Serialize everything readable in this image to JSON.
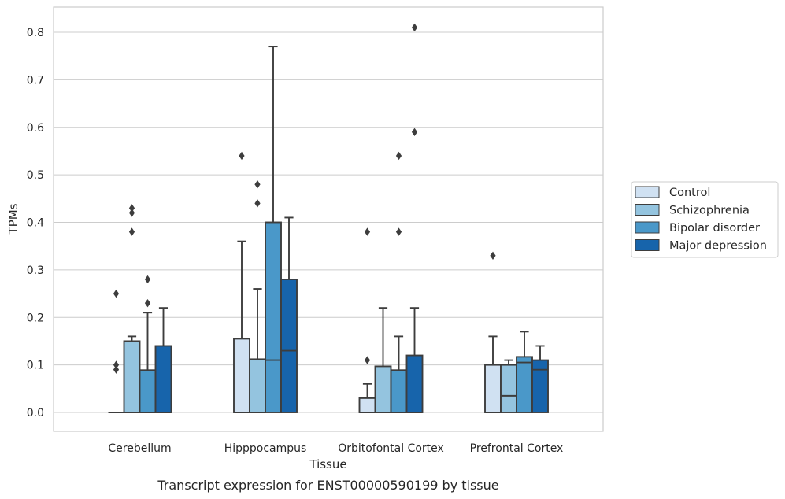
{
  "caption": "Transcript expression for ENST00000590199 by tissue",
  "chart_data": {
    "type": "boxplot",
    "title": "",
    "xlabel": "Tissue",
    "ylabel": "TPMs",
    "ylim": [
      -0.04,
      0.85
    ],
    "yticks": [
      "0.0",
      "0.1",
      "0.2",
      "0.3",
      "0.4",
      "0.5",
      "0.6",
      "0.7",
      "0.8"
    ],
    "grid": "horizontal",
    "legend_position": "right",
    "categories": [
      "Cerebellum",
      "Hipppocampus",
      "Orbitofontal Cortex",
      "Prefrontal Cortex"
    ],
    "series": [
      {
        "name": "Control",
        "color": "#d0e1f2",
        "boxes": [
          {
            "min": 0.0,
            "q1": 0.0,
            "median": 0.0,
            "q3": 0.0,
            "max": 0.0,
            "outliers": [
              0.09,
              0.1,
              0.25
            ]
          },
          {
            "min": 0.0,
            "q1": 0.0,
            "median": 0.0,
            "q3": 0.155,
            "max": 0.36,
            "outliers": [
              0.54
            ]
          },
          {
            "min": 0.0,
            "q1": 0.0,
            "median": 0.0,
            "q3": 0.03,
            "max": 0.06,
            "outliers": [
              0.11,
              0.38
            ]
          },
          {
            "min": 0.0,
            "q1": 0.0,
            "median": 0.0,
            "q3": 0.1,
            "max": 0.16,
            "outliers": [
              0.33
            ]
          }
        ]
      },
      {
        "name": "Schizophrenia",
        "color": "#94c4df",
        "boxes": [
          {
            "min": 0.0,
            "q1": 0.0,
            "median": 0.0,
            "q3": 0.15,
            "max": 0.16,
            "outliers": [
              0.38,
              0.42,
              0.43
            ]
          },
          {
            "min": 0.0,
            "q1": 0.0,
            "median": 0.0,
            "q3": 0.112,
            "max": 0.26,
            "outliers": [
              0.44,
              0.48
            ]
          },
          {
            "min": 0.0,
            "q1": 0.0,
            "median": 0.0,
            "q3": 0.097,
            "max": 0.22,
            "outliers": []
          },
          {
            "min": 0.0,
            "q1": 0.0,
            "median": 0.035,
            "q3": 0.1,
            "max": 0.11,
            "outliers": []
          }
        ]
      },
      {
        "name": "Bipolar disorder",
        "color": "#4a98c9",
        "boxes": [
          {
            "min": 0.0,
            "q1": 0.0,
            "median": 0.0,
            "q3": 0.089,
            "max": 0.21,
            "outliers": [
              0.23,
              0.28
            ]
          },
          {
            "min": 0.0,
            "q1": 0.0,
            "median": 0.11,
            "q3": 0.4,
            "max": 0.77,
            "outliers": []
          },
          {
            "min": 0.0,
            "q1": 0.0,
            "median": 0.0,
            "q3": 0.089,
            "max": 0.16,
            "outliers": [
              0.38,
              0.54
            ]
          },
          {
            "min": 0.0,
            "q1": 0.0,
            "median": 0.105,
            "q3": 0.117,
            "max": 0.17,
            "outliers": []
          }
        ]
      },
      {
        "name": "Major depression",
        "color": "#1764ab",
        "boxes": [
          {
            "min": 0.0,
            "q1": 0.0,
            "median": 0.0,
            "q3": 0.14,
            "max": 0.22,
            "outliers": []
          },
          {
            "min": 0.0,
            "q1": 0.0,
            "median": 0.13,
            "q3": 0.28,
            "max": 0.41,
            "outliers": []
          },
          {
            "min": 0.0,
            "q1": 0.0,
            "median": 0.0,
            "q3": 0.12,
            "max": 0.22,
            "outliers": [
              0.59,
              0.81
            ]
          },
          {
            "min": 0.0,
            "q1": 0.0,
            "median": 0.09,
            "q3": 0.11,
            "max": 0.14,
            "outliers": []
          }
        ]
      }
    ]
  }
}
